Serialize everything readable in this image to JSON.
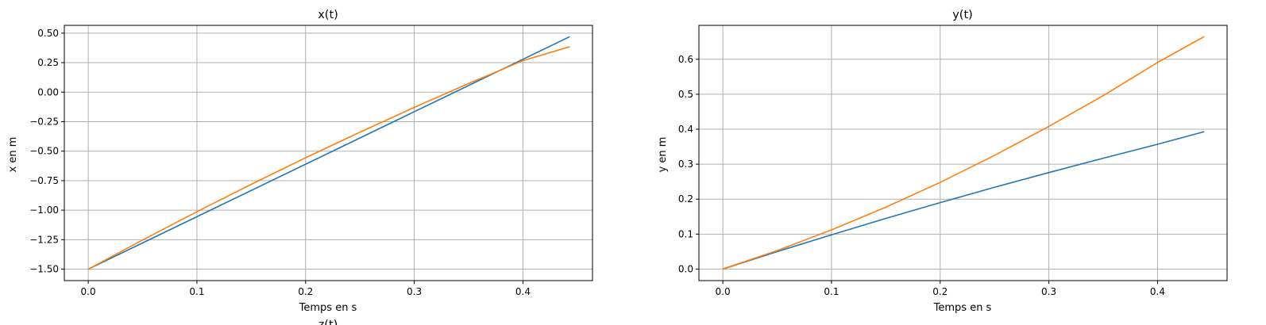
{
  "chart_data": [
    {
      "type": "line",
      "title": "x(t)",
      "xlabel": "Temps en s",
      "ylabel": "x en m",
      "xlim": [
        -0.022,
        0.464
      ],
      "ylim": [
        -1.597,
        0.566
      ],
      "xticks": [
        0.0,
        0.1,
        0.2,
        0.3,
        0.4
      ],
      "xtick_labels": [
        "0.0",
        "0.1",
        "0.2",
        "0.3",
        "0.4"
      ],
      "yticks": [
        -1.5,
        -1.25,
        -1.0,
        -0.75,
        -0.5,
        -0.25,
        0.0,
        0.25,
        0.5
      ],
      "ytick_labels": [
        "−1.50",
        "−1.25",
        "−1.00",
        "−0.75",
        "−0.50",
        "−0.25",
        "0.00",
        "0.25",
        "0.50"
      ],
      "grid": true,
      "series": [
        {
          "color": "#1f77b4",
          "x": [
            0.0,
            0.443
          ],
          "y": [
            -1.5,
            0.47
          ]
        },
        {
          "color": "#ff7f0e",
          "x": [
            0.0,
            0.05,
            0.1,
            0.15,
            0.2,
            0.25,
            0.3,
            0.35,
            0.4,
            0.443
          ],
          "y": [
            -1.5,
            -1.253,
            -1.013,
            -0.781,
            -0.556,
            -0.339,
            -0.129,
            0.073,
            0.267,
            0.385
          ]
        }
      ]
    },
    {
      "type": "line",
      "title": "y(t)",
      "xlabel": "Temps en s",
      "ylabel": "y en m",
      "xlim": [
        -0.022,
        0.464
      ],
      "ylim": [
        -0.033,
        0.697
      ],
      "xticks": [
        0.0,
        0.1,
        0.2,
        0.3,
        0.4
      ],
      "xtick_labels": [
        "0.0",
        "0.1",
        "0.2",
        "0.3",
        "0.4"
      ],
      "yticks": [
        0.0,
        0.1,
        0.2,
        0.3,
        0.4,
        0.5,
        0.6
      ],
      "ytick_labels": [
        "0.0",
        "0.1",
        "0.2",
        "0.3",
        "0.4",
        "0.5",
        "0.6"
      ],
      "grid": true,
      "series": [
        {
          "color": "#1f77b4",
          "x": [
            0.0,
            0.05,
            0.1,
            0.15,
            0.2,
            0.25,
            0.3,
            0.35,
            0.4,
            0.443
          ],
          "y": [
            0.0,
            0.05,
            0.098,
            0.145,
            0.19,
            0.234,
            0.276,
            0.317,
            0.357,
            0.393
          ]
        },
        {
          "color": "#ff7f0e",
          "x": [
            0.0,
            0.05,
            0.1,
            0.15,
            0.2,
            0.25,
            0.3,
            0.35,
            0.4,
            0.443
          ],
          "y": [
            0.0,
            0.053,
            0.112,
            0.177,
            0.248,
            0.325,
            0.408,
            0.496,
            0.591,
            0.665
          ]
        }
      ]
    }
  ],
  "cut_title": "z(t)"
}
